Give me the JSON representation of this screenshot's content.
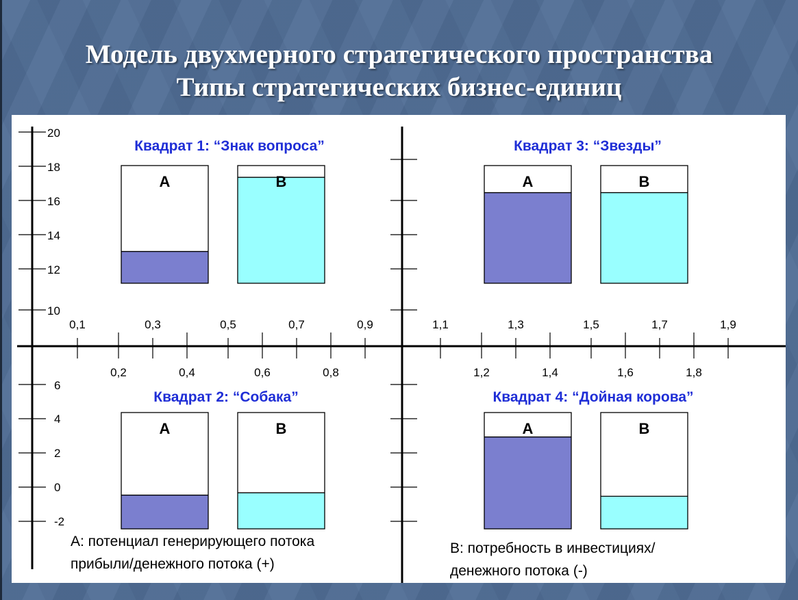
{
  "title": {
    "line1": "Модель двухмерного стратегического пространства",
    "line2": "Типы стратегических бизнес-единиц"
  },
  "y_axis_top": {
    "ticks": [
      "20",
      "18",
      "16",
      "14",
      "12",
      "10"
    ]
  },
  "y_axis_bottom": {
    "ticks": [
      "6",
      "4",
      "2",
      "0",
      "-2"
    ]
  },
  "x_axis": {
    "labels_above": [
      "0,1",
      "0,3",
      "0,5",
      "0,7",
      "0,9",
      "1,1",
      "1,3",
      "1,5",
      "1,7",
      "1,9"
    ],
    "labels_below": [
      "0,2",
      "0,4",
      "0,6",
      "0,8",
      "1,2",
      "1,4",
      "1,6",
      "1,8"
    ]
  },
  "quadrants": [
    {
      "title": "Квадрат 1: “Знак вопроса”",
      "bars": [
        {
          "label": "А",
          "fill": 0.27
        },
        {
          "label": "В",
          "fill": 0.9
        }
      ]
    },
    {
      "title": "Квадрат 3: “Звезды”",
      "bars": [
        {
          "label": "А",
          "fill": 0.77
        },
        {
          "label": "В",
          "fill": 0.77
        }
      ]
    },
    {
      "title": "Квадрат 2: “Собака”",
      "bars": [
        {
          "label": "А",
          "fill": 0.29
        },
        {
          "label": "В",
          "fill": 0.31
        }
      ]
    },
    {
      "title": "Квадрат 4: “Дойная корова”",
      "bars": [
        {
          "label": "А",
          "fill": 0.79
        },
        {
          "label": "В",
          "fill": 0.28
        }
      ]
    }
  ],
  "legend": {
    "a_line1": "А: потенциал генерирующего потока",
    "a_line2": "прибыли/денежного потока (+)",
    "b_line1": "В: потребность в инвестициях/",
    "b_line2": "денежного потока (-)"
  },
  "colors": {
    "bar_a": "#7b7fcf",
    "bar_b": "#99ffff",
    "quadrant_title": "#1f2ed6",
    "background": "#4f6c94"
  }
}
